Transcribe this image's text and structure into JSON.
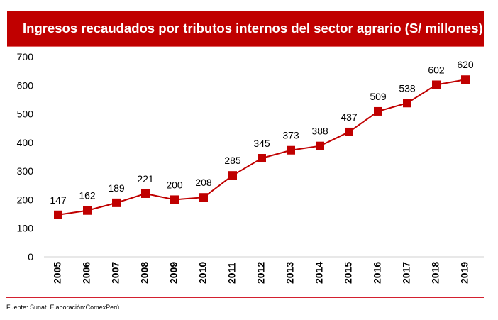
{
  "header": {
    "title": "Ingresos recaudados por tributos internos del sector agrario (S/ millones)"
  },
  "footer": {
    "source": "Fuente: Sunat. Elaboración:ComexPerú."
  },
  "colors": {
    "banner": "#c00000",
    "series": "#c00000",
    "grid": "#d9d9d9",
    "footer_rule": "#d3202f"
  },
  "chart_data": {
    "type": "line",
    "title": "Ingresos recaudados por tributos internos del sector agrario (S/ millones)",
    "xlabel": "",
    "ylabel": "",
    "categories": [
      "2005",
      "2006",
      "2007",
      "2008",
      "2009",
      "2010",
      "2011",
      "2012",
      "2013",
      "2014",
      "2015",
      "2016",
      "2017",
      "2018",
      "2019"
    ],
    "series": [
      {
        "name": "Ingresos recaudados",
        "values": [
          147,
          162,
          189,
          221,
          200,
          208,
          285,
          345,
          373,
          388,
          437,
          509,
          538,
          602,
          620
        ],
        "marker": "square",
        "data_labels": true
      }
    ],
    "ylim": [
      0,
      700
    ],
    "yticks": [
      0,
      100,
      200,
      300,
      400,
      500,
      600,
      700
    ],
    "grid": "baseline-only",
    "legend": "none"
  }
}
